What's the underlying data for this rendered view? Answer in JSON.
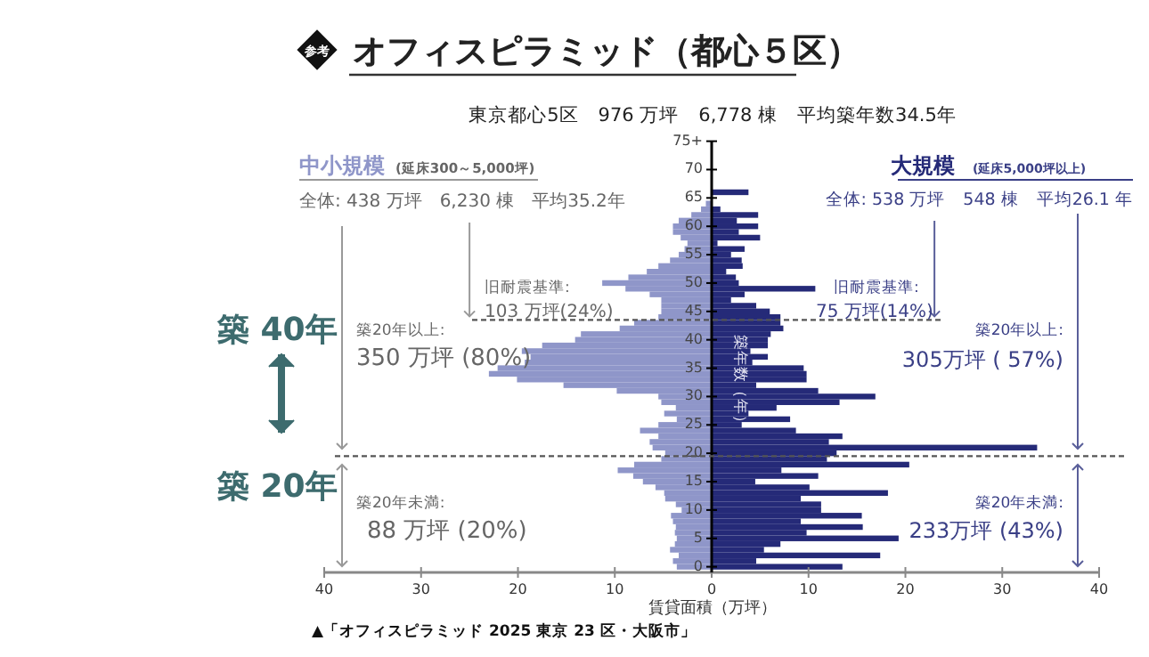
{
  "chart_data": {
    "type": "bar",
    "orientation": "horizontal",
    "stacked": true,
    "title": "オフィスピラミッド（都心５区）",
    "subtitle": "東京都心5区　976 万坪　6,778 棟　平均築年数34.5年",
    "xlabel": "賃貸面積（万坪）",
    "ylabel": "築年数（年）",
    "x": [
      0,
      1,
      2,
      3,
      4,
      5,
      6,
      7,
      8,
      9,
      10,
      11,
      12,
      13,
      14,
      15,
      16,
      17,
      18,
      19,
      20,
      21,
      22,
      23,
      24,
      25,
      26,
      27,
      28,
      29,
      30,
      31,
      32,
      33,
      34,
      35,
      36,
      37,
      38,
      39,
      40,
      41,
      42,
      43,
      44,
      45,
      46,
      47,
      48,
      49,
      50,
      51,
      52,
      53,
      54,
      55,
      56,
      57,
      58,
      59,
      60,
      61,
      62,
      63,
      64,
      65,
      66
    ],
    "series": [
      {
        "name": "中小規模",
        "color": "#8f96c9",
        "values": [
          -3.6,
          -4.0,
          -3.4,
          -4.3,
          -3.8,
          -3.6,
          -3.8,
          -3.7,
          -4.0,
          -4.2,
          -3.1,
          -3.7,
          -4.8,
          -4.9,
          -5.8,
          -7.1,
          -8.1,
          -9.7,
          -8.0,
          -5.2,
          -4.8,
          -6.1,
          -6.4,
          -5.5,
          -7.4,
          -5.5,
          -3.6,
          -4.9,
          -3.7,
          -5.2,
          -5.5,
          -9.8,
          -15.3,
          -20.1,
          -23.0,
          -22.1,
          -19.3,
          -18.7,
          -19.6,
          -17.5,
          -14.1,
          -13.5,
          -9.5,
          -8.0,
          -5.5,
          -5.2,
          -5.2,
          -5.2,
          -6.4,
          -8.9,
          -11.3,
          -8.6,
          -6.7,
          -5.5,
          -4.3,
          -3.4,
          -2.8,
          -2.5,
          -3.2,
          -4.0,
          -4.0,
          -3.4,
          -2.1,
          -1.1,
          -0.6,
          null,
          0
        ]
      },
      {
        "name": "大規模",
        "color": "#252a78",
        "values": [
          13.5,
          4.6,
          17.4,
          5.4,
          7.1,
          19.3,
          9.8,
          15.6,
          9.2,
          15.5,
          11.3,
          11.3,
          9.2,
          18.2,
          10.1,
          4.5,
          11.0,
          7.2,
          20.4,
          11.9,
          12.9,
          33.6,
          12.1,
          13.5,
          8.7,
          3.1,
          8.1,
          3.8,
          6.7,
          13.2,
          16.9,
          11.0,
          4.6,
          9.8,
          9.8,
          9.5,
          4.2,
          5.8,
          4.0,
          5.8,
          5.8,
          6.1,
          7.4,
          7.1,
          7.1,
          6.0,
          4.6,
          2.0,
          3.4,
          10.7,
          2.8,
          2.5,
          1.5,
          3.2,
          3.1,
          2.0,
          3.4,
          0.6,
          5.0,
          2.8,
          4.8,
          2.6,
          4.8,
          0.9,
          0,
          0,
          3.8
        ]
      }
    ],
    "xlim": [
      -40,
      40
    ],
    "xticks": [
      {
        "value": -40,
        "label": "40"
      },
      {
        "value": -30,
        "label": "30"
      },
      {
        "value": -20,
        "label": "20"
      },
      {
        "value": -10,
        "label": "10"
      },
      0,
      10,
      20,
      30,
      40
    ],
    "ylim": [
      -1,
      75
    ],
    "yticks": [
      0,
      5,
      10,
      15,
      20,
      25,
      30,
      35,
      40,
      45,
      50,
      55,
      60,
      65,
      70,
      {
        "value": 75,
        "label": "75+"
      }
    ],
    "ref_lines": [
      {
        "axis": "y",
        "value": 19.5,
        "line_style": "dashed",
        "color": "#555555"
      },
      {
        "axis": "y",
        "value": 43.5,
        "line_style": "dashed",
        "color": "#555555"
      }
    ],
    "annotations": [
      "参考",
      {
        "text": "全体: 438 万坪　6,230 棟　平均35.2年",
        "x": -25,
        "y": 43.5
      },
      {
        "text": "全体: 538 万坪　548 棟　平均26.1 年",
        "x": 23,
        "y": 43.5
      },
      "旧耐震基準:",
      "103 万坪(24%)",
      "旧耐震基準:",
      "75 万坪(14%)",
      "築20年以上:",
      "350 万坪 (80%)",
      "築20年以上:",
      "305万坪 ( 57%)",
      "築20年未満:",
      "88 万坪 (20%)",
      "築20年未満:",
      "233万坪 (43%)",
      "築 40年",
      "築 20年",
      "▲「オフィスピラミッド 2025 東京 23 区・大阪市」",
      "(延床300～5,000坪)",
      "(延床5,000坪以上)"
    ]
  }
}
